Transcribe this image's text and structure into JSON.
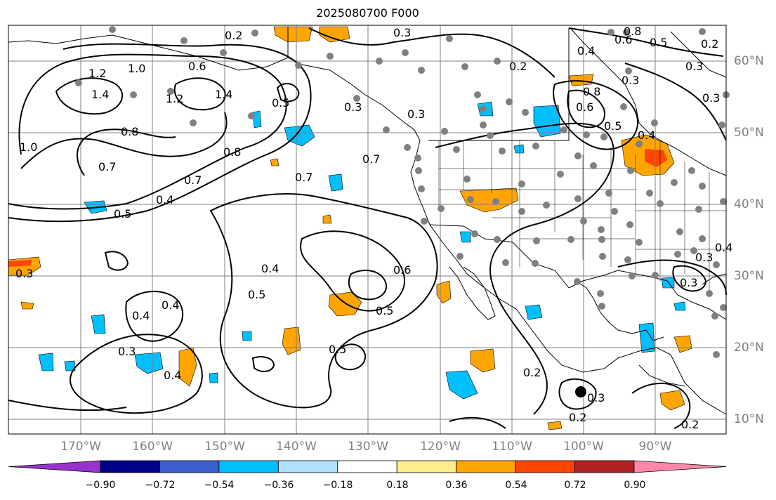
{
  "title": "2025080700 F000",
  "colors": {
    "land_outline": "#000000",
    "grid": "#808080",
    "contour": "#000000",
    "positive_fill": "#ffa500",
    "positive_strong": "#ff4500",
    "negative_fill": "#00bfff",
    "station_dot": "#808080"
  },
  "lon_labels": [
    "170°W",
    "160°W",
    "150°W",
    "140°W",
    "130°W",
    "120°W",
    "110°W",
    "100°W",
    "90°W"
  ],
  "lat_labels": [
    "60°N",
    "50°N",
    "40°N",
    "30°N",
    "20°N",
    "10°N"
  ],
  "colorbar": {
    "colors": [
      "#9932cc",
      "#00008b",
      "#3a5fcd",
      "#00bfff",
      "#b0e2ff",
      "#ffffff",
      "#ffec8b",
      "#ffa500",
      "#ff4500",
      "#b22222",
      "#ff88aa"
    ],
    "tick_labels": [
      "−0.90",
      "−0.72",
      "−0.54",
      "−0.36",
      "−0.18",
      "0.18",
      "0.36",
      "0.54",
      "0.72",
      "0.90"
    ]
  },
  "contour_labels": [
    "0.2",
    "0.3",
    "0.8",
    "0.6",
    "0.5",
    "0.2",
    "0.4",
    "0.2",
    "0.3",
    "1.2",
    "1.0",
    "0.6",
    "1.4",
    "1.2",
    "0.3",
    "1.4",
    "0.5",
    "0.8",
    "0.3",
    "0.6",
    "0.8",
    "0.3",
    "0.5",
    "0.3",
    "0.4",
    "0.7",
    "0.8",
    "0.7",
    "1.0",
    "0.7",
    "0.7",
    "0.4",
    "0.5",
    "0.4",
    "0.5",
    "0.6",
    "0.5",
    "0.4",
    "0.3",
    "0.3",
    "0.4",
    "0.4",
    "0.3",
    "0.5",
    "0.2",
    "0.3",
    "0.2",
    "0.3",
    "0.2",
    "0.4"
  ]
}
